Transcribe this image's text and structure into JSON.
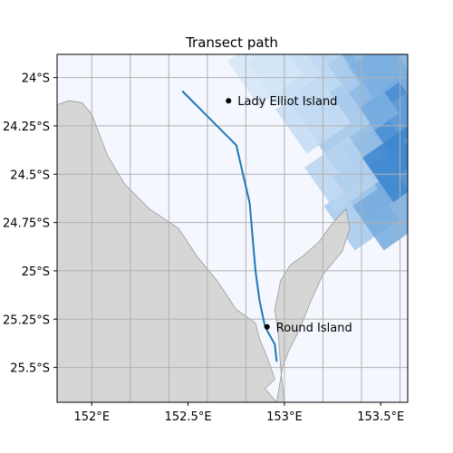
{
  "title": "Transect path",
  "colors": {
    "land": "#d6d6d6",
    "land_edge": "#9a9a9a",
    "water": "#f4f8fe",
    "grid": "#b0b0b0",
    "path": "#1f77b4",
    "point": "#000000"
  },
  "axes": {
    "lon_range": [
      151.82,
      153.64
    ],
    "lat_range": [
      -25.68,
      -23.88
    ],
    "x_ticks": [
      {
        "value": 152.0,
        "label": "152°E"
      },
      {
        "value": 152.5,
        "label": "152.5°E"
      },
      {
        "value": 153.0,
        "label": "153°E"
      },
      {
        "value": 153.5,
        "label": "153.5°E"
      }
    ],
    "y_ticks": [
      {
        "value": -24.0,
        "label": "24°S"
      },
      {
        "value": -24.25,
        "label": "24.25°S"
      },
      {
        "value": -24.5,
        "label": "24.5°S"
      },
      {
        "value": -24.75,
        "label": "24.75°S"
      },
      {
        "value": -25.0,
        "label": "25°S"
      },
      {
        "value": -25.25,
        "label": "25.25°S"
      },
      {
        "value": -25.5,
        "label": "25.5°S"
      }
    ],
    "grid_lons": [
      152.0,
      152.2,
      152.4,
      152.6,
      152.8,
      153.0,
      153.2,
      153.4,
      153.6
    ],
    "grid_lats": [
      -24.0,
      -24.25,
      -24.5,
      -24.75,
      -25.0,
      -25.25,
      -25.5
    ]
  },
  "places": [
    {
      "name": "Lady Elliot Island",
      "lon": 152.71,
      "lat": -24.12
    },
    {
      "name": "Round Island",
      "lon": 152.91,
      "lat": -25.29
    }
  ],
  "transect": [
    [
      152.47,
      -24.07
    ],
    [
      152.6,
      -24.2
    ],
    [
      152.75,
      -24.35
    ],
    [
      152.82,
      -24.65
    ],
    [
      152.85,
      -25.0
    ],
    [
      152.87,
      -25.15
    ],
    [
      152.9,
      -25.29
    ],
    [
      152.95,
      -25.38
    ],
    [
      152.96,
      -25.47
    ]
  ],
  "land_polygons": [
    [
      [
        151.82,
        -24.14
      ],
      [
        151.88,
        -24.12
      ],
      [
        151.95,
        -24.13
      ],
      [
        152.0,
        -24.19
      ],
      [
        152.08,
        -24.4
      ],
      [
        152.17,
        -24.55
      ],
      [
        152.3,
        -24.68
      ],
      [
        152.45,
        -24.78
      ],
      [
        152.55,
        -24.93
      ],
      [
        152.65,
        -25.05
      ],
      [
        152.75,
        -25.2
      ],
      [
        152.85,
        -25.27
      ],
      [
        152.87,
        -25.35
      ],
      [
        152.9,
        -25.42
      ],
      [
        152.93,
        -25.5
      ],
      [
        152.95,
        -25.56
      ],
      [
        152.9,
        -25.61
      ],
      [
        152.96,
        -25.68
      ],
      [
        151.82,
        -25.68
      ]
    ],
    [
      [
        152.96,
        -25.68
      ],
      [
        152.99,
        -25.5
      ],
      [
        153.02,
        -25.42
      ],
      [
        153.08,
        -25.3
      ],
      [
        153.14,
        -25.15
      ],
      [
        153.2,
        -25.02
      ],
      [
        153.3,
        -24.9
      ],
      [
        153.34,
        -24.78
      ],
      [
        153.32,
        -24.68
      ],
      [
        153.28,
        -24.72
      ],
      [
        153.23,
        -24.78
      ],
      [
        153.18,
        -24.85
      ],
      [
        153.1,
        -24.92
      ],
      [
        153.03,
        -24.97
      ],
      [
        152.98,
        -25.05
      ],
      [
        152.95,
        -25.2
      ],
      [
        152.97,
        -25.35
      ],
      [
        152.98,
        -25.5
      ],
      [
        153.0,
        -25.68
      ]
    ]
  ],
  "shading_cells": [
    {
      "lon": 153.5,
      "lat": -24.0,
      "level": 0.7
    },
    {
      "lon": 153.55,
      "lat": -24.2,
      "level": 0.85
    },
    {
      "lon": 153.5,
      "lat": -24.4,
      "level": 0.8
    },
    {
      "lon": 153.4,
      "lat": -24.15,
      "level": 0.55
    },
    {
      "lon": 153.3,
      "lat": -24.05,
      "level": 0.45
    },
    {
      "lon": 153.2,
      "lat": -24.0,
      "level": 0.3
    },
    {
      "lon": 153.45,
      "lat": -24.55,
      "level": 0.55
    },
    {
      "lon": 153.35,
      "lat": -24.35,
      "level": 0.4
    },
    {
      "lon": 153.25,
      "lat": -24.2,
      "level": 0.3
    },
    {
      "lon": 153.1,
      "lat": -24.0,
      "level": 0.2
    },
    {
      "lon": 153.4,
      "lat": -24.7,
      "level": 0.35
    },
    {
      "lon": 153.3,
      "lat": -24.5,
      "level": 0.25
    },
    {
      "lon": 153.15,
      "lat": -24.2,
      "level": 0.18
    },
    {
      "lon": 153.0,
      "lat": -23.95,
      "level": 0.15
    },
    {
      "lon": 152.9,
      "lat": -23.95,
      "level": 0.1
    },
    {
      "lon": 153.55,
      "lat": -24.7,
      "level": 0.6
    },
    {
      "lon": 153.5,
      "lat": -23.92,
      "level": 0.55
    },
    {
      "lon": 153.6,
      "lat": -24.45,
      "level": 0.9
    }
  ]
}
